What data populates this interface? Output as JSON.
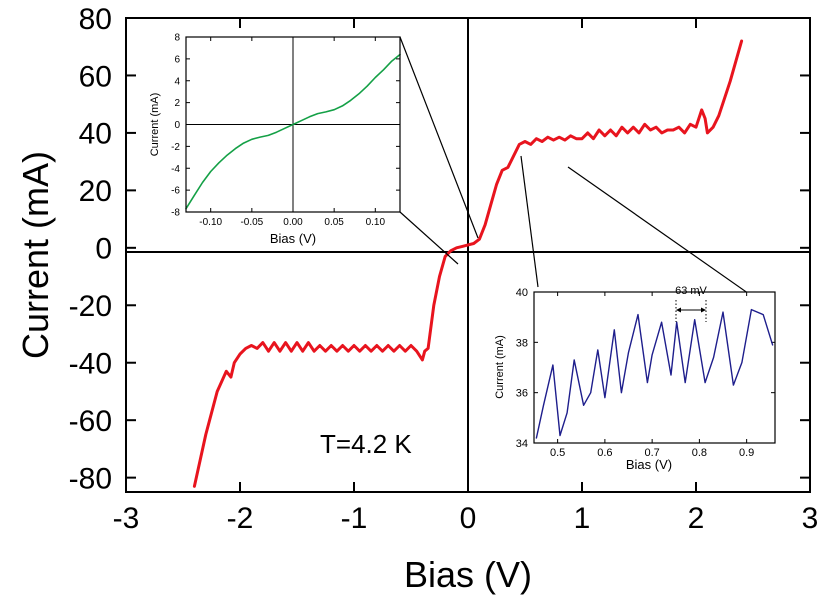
{
  "chart_data": [
    {
      "type": "line",
      "xlabel": "Bias (V)",
      "ylabel": "Current (mA)",
      "xlim": [
        -3,
        3
      ],
      "ylim": [
        -85,
        80
      ],
      "xticks": [
        -3,
        -2,
        -1,
        0,
        1,
        2,
        3
      ],
      "yticks": [
        -80,
        -60,
        -40,
        -20,
        0,
        20,
        40,
        60,
        80
      ],
      "annotation": "T=4.2 K",
      "grid": false,
      "color": "#e8141e",
      "x": [
        -2.4,
        -2.3,
        -2.2,
        -2.12,
        -2.08,
        -2.05,
        -2.0,
        -1.95,
        -1.9,
        -1.85,
        -1.8,
        -1.75,
        -1.7,
        -1.65,
        -1.6,
        -1.55,
        -1.5,
        -1.45,
        -1.4,
        -1.35,
        -1.3,
        -1.25,
        -1.2,
        -1.15,
        -1.1,
        -1.05,
        -1.0,
        -0.95,
        -0.9,
        -0.85,
        -0.8,
        -0.75,
        -0.7,
        -0.65,
        -0.6,
        -0.55,
        -0.5,
        -0.45,
        -0.4,
        -0.38,
        -0.35,
        -0.3,
        -0.25,
        -0.2,
        -0.15,
        -0.1,
        -0.05,
        0.0,
        0.05,
        0.1,
        0.15,
        0.2,
        0.25,
        0.3,
        0.35,
        0.4,
        0.45,
        0.5,
        0.55,
        0.6,
        0.65,
        0.7,
        0.75,
        0.8,
        0.85,
        0.9,
        0.95,
        1.0,
        1.05,
        1.1,
        1.15,
        1.2,
        1.25,
        1.3,
        1.35,
        1.4,
        1.45,
        1.5,
        1.55,
        1.6,
        1.65,
        1.7,
        1.75,
        1.8,
        1.85,
        1.9,
        1.95,
        2.0,
        2.05,
        2.08,
        2.1,
        2.15,
        2.2,
        2.3,
        2.4
      ],
      "y": [
        -83,
        -65,
        -50,
        -43,
        -45,
        -40,
        -37,
        -35,
        -34,
        -35,
        -33,
        -36,
        -33,
        -36,
        -33,
        -36,
        -33,
        -36,
        -33,
        -36,
        -34,
        -36,
        -34,
        -36,
        -34,
        -36,
        -34,
        -36,
        -34,
        -36,
        -34,
        -36,
        -34,
        -36,
        -34,
        -36,
        -34,
        -36,
        -39,
        -36,
        -35,
        -20,
        -10,
        -3,
        -1,
        0,
        0.5,
        1,
        1.5,
        3,
        8,
        15,
        22,
        27,
        28,
        32,
        36,
        37,
        36,
        38,
        37,
        38.5,
        37.5,
        38.5,
        37.5,
        39,
        38,
        38,
        40,
        38,
        41,
        39,
        41,
        39,
        42,
        40,
        42,
        40,
        43,
        41,
        42,
        40,
        41,
        41,
        42,
        40,
        43,
        42,
        48,
        45,
        40,
        42,
        46,
        58,
        72
      ]
    },
    {
      "type": "line",
      "xlabel": "Bias (V)",
      "ylabel": "Current (mA)",
      "xlim": [
        -0.13,
        0.13
      ],
      "ylim": [
        -8,
        8
      ],
      "xticks": [
        "-0.10",
        "-0.05",
        "0.00",
        "0.05",
        "0.10"
      ],
      "yticks": [
        "-8",
        "-6",
        "-4",
        "-2",
        "0",
        "2",
        "4",
        "6",
        "8"
      ],
      "grid": false,
      "color": "#14a046",
      "x": [
        -0.13,
        -0.12,
        -0.11,
        -0.1,
        -0.09,
        -0.08,
        -0.07,
        -0.06,
        -0.05,
        -0.04,
        -0.03,
        -0.02,
        -0.01,
        0.0,
        0.01,
        0.02,
        0.03,
        0.04,
        0.05,
        0.06,
        0.07,
        0.08,
        0.09,
        0.1,
        0.11,
        0.12,
        0.13
      ],
      "y": [
        -7.7,
        -6.5,
        -5.3,
        -4.3,
        -3.5,
        -2.8,
        -2.2,
        -1.7,
        -1.35,
        -1.15,
        -1.0,
        -0.7,
        -0.35,
        0.0,
        0.35,
        0.7,
        1.0,
        1.15,
        1.35,
        1.7,
        2.2,
        2.8,
        3.5,
        4.3,
        5.0,
        5.8,
        6.4
      ]
    },
    {
      "type": "line",
      "xlabel": "Bias (V)",
      "ylabel": "Current (mA)",
      "xlim": [
        0.45,
        0.96
      ],
      "ylim": [
        34,
        40
      ],
      "xticks": [
        "0.5",
        "0.6",
        "0.7",
        "0.8",
        "0.9"
      ],
      "yticks": [
        "34",
        "36",
        "38",
        "40"
      ],
      "annotation": "63 mV",
      "grid": false,
      "color": "#1e1e8c",
      "x": [
        0.455,
        0.47,
        0.49,
        0.505,
        0.52,
        0.535,
        0.555,
        0.57,
        0.585,
        0.6,
        0.62,
        0.635,
        0.65,
        0.67,
        0.69,
        0.7,
        0.72,
        0.74,
        0.752,
        0.77,
        0.79,
        0.812,
        0.83,
        0.85,
        0.872,
        0.89,
        0.91,
        0.935,
        0.955
      ],
      "y": [
        34.2,
        35.5,
        37.1,
        34.3,
        35.2,
        37.3,
        35.5,
        36.0,
        37.7,
        35.8,
        38.5,
        36.0,
        37.6,
        39.1,
        36.4,
        37.5,
        38.8,
        36.7,
        38.8,
        36.4,
        38.9,
        36.4,
        37.4,
        39.2,
        36.3,
        37.2,
        39.3,
        39.1,
        37.9
      ]
    }
  ]
}
